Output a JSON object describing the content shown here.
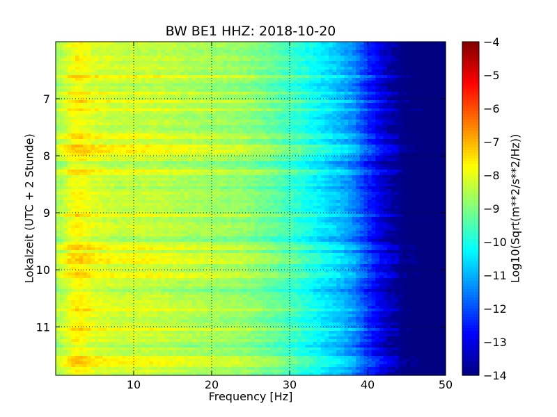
{
  "chart_data": {
    "type": "heatmap",
    "title": "BW BE1 HHZ: 2018-10-20",
    "xlabel": "Frequency [Hz]",
    "ylabel": "Lokalzeit (UTC + 2 Stunde)",
    "colorbar_label": "Log10(Sqrt(m**2/s**2/Hz))",
    "colormap": "jet",
    "xlim": [
      0,
      50
    ],
    "ylim": [
      11.85,
      6.0
    ],
    "clim": [
      -14,
      -4
    ],
    "x_ticks": [
      10,
      20,
      30,
      40,
      50
    ],
    "y_ticks": [
      7,
      8,
      9,
      10,
      11
    ],
    "colorbar_ticks": [
      -4,
      -5,
      -6,
      -7,
      -8,
      -9,
      -10,
      -11,
      -12,
      -13,
      -14
    ],
    "grid": true,
    "profile": {
      "frequency_hz": [
        0.5,
        2,
        3,
        5,
        8,
        12,
        18,
        24,
        28,
        31,
        33,
        36,
        38,
        40,
        42,
        44,
        45,
        50
      ],
      "log10_amplitude": [
        -8.6,
        -7.9,
        -7.7,
        -8.1,
        -8.3,
        -8.3,
        -8.6,
        -8.8,
        -9.3,
        -9.8,
        -10.2,
        -10.8,
        -11.3,
        -12.3,
        -13.2,
        -13.8,
        -14.0,
        -14.0
      ]
    },
    "bright_bands_local_time": [
      6.6,
      6.9,
      7.05,
      7.2,
      7.65,
      7.85,
      7.95,
      8.3,
      9.05,
      9.6,
      9.75,
      9.85,
      10.1,
      10.7,
      11.05,
      11.55,
      11.65
    ],
    "dark_bands_local_time": [
      6.75,
      7.5,
      8.15,
      8.55,
      9.45,
      10.35,
      11.3
    ]
  }
}
